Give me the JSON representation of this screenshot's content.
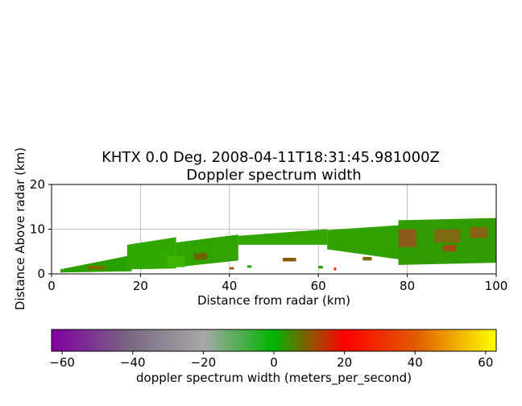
{
  "chart_data": [
    {
      "type": "heatmap",
      "title": "KHTX 0.0 Deg. 2008-04-11T18:31:45.981000Z",
      "subtitle": "Doppler spectrum width",
      "xlabel": "Distance from radar (km)",
      "ylabel": "Distance Above radar  (km)",
      "xlim": [
        0,
        100
      ],
      "ylim": [
        0,
        20
      ],
      "xticks": [
        0,
        20,
        40,
        60,
        80,
        100
      ],
      "yticks": [
        0,
        10,
        20
      ],
      "grid": true,
      "bands": [
        {
          "x0": 2,
          "x1": 18,
          "ylo0": 0.3,
          "yhi0": 1.0,
          "ylo1": 0.6,
          "yhi1": 4.2,
          "color": "#2aa000"
        },
        {
          "x0": 17,
          "x1": 28,
          "ylo0": 1.0,
          "yhi0": 6.5,
          "ylo1": 1.2,
          "yhi1": 8.2,
          "color": "#31a800"
        },
        {
          "x0": 28,
          "x1": 42,
          "ylo0": 1.5,
          "yhi0": 7.0,
          "ylo1": 3.0,
          "yhi1": 8.8,
          "color": "#2fa400"
        },
        {
          "x0": 42,
          "x1": 62,
          "ylo0": 6.5,
          "yhi0": 8.5,
          "ylo1": 6.5,
          "yhi1": 10.0,
          "color": "#34a600"
        },
        {
          "x0": 62,
          "x1": 80,
          "ylo0": 5.5,
          "yhi0": 9.8,
          "ylo1": 3.0,
          "yhi1": 11.0,
          "color": "#30a200"
        },
        {
          "x0": 78,
          "x1": 100,
          "ylo0": 2.0,
          "yhi0": 12.0,
          "ylo1": 2.5,
          "yhi1": 12.5,
          "color": "#2f9d00"
        }
      ],
      "blocks": [
        {
          "x": 8,
          "y": 1.0,
          "w": 4,
          "h": 0.8,
          "color": "#7a6a00"
        },
        {
          "x": 26,
          "y": 1.5,
          "w": 4,
          "h": 2.5,
          "color": "#3cb400"
        },
        {
          "x": 32,
          "y": 3.2,
          "w": 3,
          "h": 1.5,
          "color": "#6b6400"
        },
        {
          "x": 52,
          "y": 2.8,
          "w": 3,
          "h": 0.8,
          "color": "#8a5a00"
        },
        {
          "x": 70,
          "y": 3.0,
          "w": 2,
          "h": 0.8,
          "color": "#7a6a00"
        },
        {
          "x": 78,
          "y": 6.0,
          "w": 4,
          "h": 4.0,
          "color": "#8b5a1a"
        },
        {
          "x": 86,
          "y": 7.0,
          "w": 6,
          "h": 3.0,
          "color": "#7d6a10"
        },
        {
          "x": 94,
          "y": 8.0,
          "w": 4,
          "h": 2.5,
          "color": "#866214"
        },
        {
          "x": 88,
          "y": 5.0,
          "w": 3,
          "h": 1.5,
          "color": "#9c4e10"
        },
        {
          "x": 40,
          "y": 1.0,
          "w": 1,
          "h": 0.5,
          "color": "#9c4e10"
        },
        {
          "x": 63.5,
          "y": 0.8,
          "w": 0.5,
          "h": 0.6,
          "color": "#ff1a00"
        },
        {
          "x": 60,
          "y": 1.2,
          "w": 1,
          "h": 0.6,
          "color": "#2aa000"
        },
        {
          "x": 44,
          "y": 1.4,
          "w": 1,
          "h": 0.5,
          "color": "#2aa000"
        }
      ]
    },
    {
      "type": "colorbar",
      "label": "doppler spectrum width (meters_per_second)",
      "range": [
        -63,
        63
      ],
      "ticks": [
        -60,
        -40,
        -20,
        0,
        20,
        40,
        60
      ],
      "stops": [
        {
          "value": -63,
          "color": "#8000a0"
        },
        {
          "value": -40,
          "color": "#7a6a82"
        },
        {
          "value": -20,
          "color": "#a8a8a8"
        },
        {
          "value": 0,
          "color": "#00b400"
        },
        {
          "value": 10,
          "color": "#8a5a00"
        },
        {
          "value": 20,
          "color": "#ff0000"
        },
        {
          "value": 40,
          "color": "#e05a00"
        },
        {
          "value": 63,
          "color": "#ffff00"
        }
      ]
    }
  ]
}
